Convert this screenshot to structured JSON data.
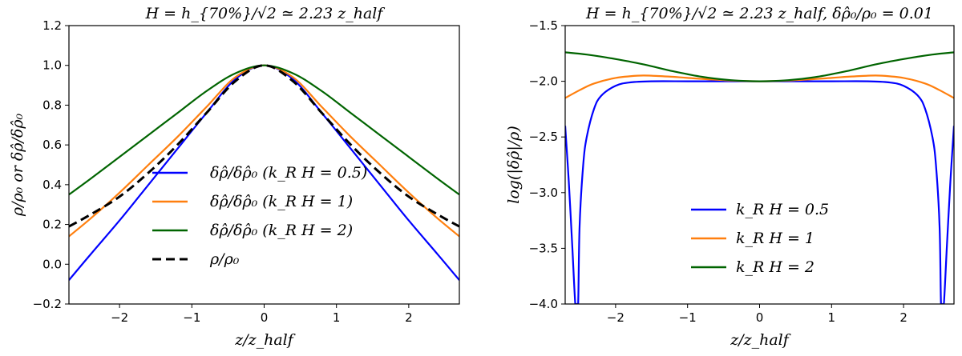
{
  "chart_data": [
    {
      "type": "line",
      "title": "H = h_{70%}/√2 ≃ 2.23 z_half",
      "xlabel": "z/z_half",
      "ylabel": "ρ/ρ₀ or δρ̂/δρ̂₀",
      "xlim": [
        -2.7,
        2.7
      ],
      "ylim": [
        -0.2,
        1.2
      ],
      "xticks": [
        -2,
        -1,
        0,
        1,
        2
      ],
      "xtick_labels": [
        "−2",
        "−1",
        "0",
        "1",
        "2"
      ],
      "yticks": [
        -0.2,
        0.0,
        0.2,
        0.4,
        0.6,
        0.8,
        1.0,
        1.2
      ],
      "ytick_labels": [
        "−0.2",
        "0.0",
        "0.2",
        "0.4",
        "0.6",
        "0.8",
        "1.0",
        "1.2"
      ],
      "grid": false,
      "legend_position": "center",
      "series": [
        {
          "name": "δρ̂/δρ̂₀ (k_R H = 0.5)",
          "color": "#0000ff",
          "dash": "solid",
          "x": [
            -2.7,
            -2.4,
            -2.0,
            -1.6,
            -1.2,
            -0.8,
            -0.4,
            0.0,
            0.4,
            0.8,
            1.2,
            1.6,
            2.0,
            2.4,
            2.7
          ],
          "y": [
            -0.08,
            0.05,
            0.22,
            0.4,
            0.58,
            0.76,
            0.93,
            1.0,
            0.93,
            0.76,
            0.58,
            0.4,
            0.22,
            0.05,
            -0.08
          ]
        },
        {
          "name": "δρ̂/δρ̂₀ (k_R H = 1)",
          "color": "#ff7f0e",
          "dash": "solid",
          "x": [
            -2.7,
            -2.4,
            -2.0,
            -1.6,
            -1.2,
            -0.8,
            -0.4,
            0.0,
            0.4,
            0.8,
            1.2,
            1.6,
            2.0,
            2.4,
            2.7
          ],
          "y": [
            0.14,
            0.23,
            0.36,
            0.5,
            0.64,
            0.79,
            0.94,
            1.0,
            0.94,
            0.79,
            0.64,
            0.5,
            0.36,
            0.23,
            0.14
          ]
        },
        {
          "name": "δρ̂/δρ̂₀ (k_R H = 2)",
          "color": "#006400",
          "dash": "solid",
          "x": [
            -2.7,
            -2.4,
            -2.0,
            -1.6,
            -1.2,
            -0.8,
            -0.4,
            0.0,
            0.4,
            0.8,
            1.2,
            1.6,
            2.0,
            2.4,
            2.7
          ],
          "y": [
            0.35,
            0.43,
            0.54,
            0.65,
            0.76,
            0.87,
            0.96,
            1.0,
            0.96,
            0.87,
            0.76,
            0.65,
            0.54,
            0.43,
            0.35
          ]
        },
        {
          "name": "ρ/ρ₀",
          "color": "#000000",
          "dash": "dashed",
          "x": [
            -2.7,
            -2.4,
            -2.0,
            -1.6,
            -1.2,
            -0.8,
            -0.4,
            0.0,
            0.4,
            0.8,
            1.2,
            1.6,
            2.0,
            2.4,
            2.7
          ],
          "y": [
            0.19,
            0.25,
            0.34,
            0.46,
            0.6,
            0.76,
            0.92,
            1.0,
            0.92,
            0.76,
            0.6,
            0.46,
            0.34,
            0.25,
            0.19
          ]
        }
      ]
    },
    {
      "type": "line",
      "title": "H = h_{70%}/√2 ≃ 2.23 z_half,   δρ̂₀/ρ₀ = 0.01",
      "xlabel": "z/z_half",
      "ylabel": "log(|δρ̂|/ρ)",
      "xlim": [
        -2.7,
        2.7
      ],
      "ylim": [
        -4.0,
        -1.5
      ],
      "xticks": [
        -2,
        -1,
        0,
        1,
        2
      ],
      "xtick_labels": [
        "−2",
        "−1",
        "0",
        "1",
        "2"
      ],
      "yticks": [
        -4.0,
        -3.5,
        -3.0,
        -2.5,
        -2.0,
        -1.5
      ],
      "ytick_labels": [
        "−4.0",
        "−3.5",
        "−3.0",
        "−2.5",
        "−2.0",
        "−1.5"
      ],
      "grid": false,
      "legend_position": "lower center",
      "series": [
        {
          "name": "k_R H = 0.5",
          "color": "#0000ff",
          "dash": "solid",
          "x": [
            -2.7,
            -2.65,
            -2.6,
            -2.56,
            -2.54,
            -2.52,
            -2.5,
            -2.45,
            -2.4,
            -2.3,
            -2.2,
            -2.0,
            -1.8,
            -1.5,
            -1.0,
            -0.5,
            0.0,
            0.5,
            1.0,
            1.5,
            1.8,
            2.0,
            2.2,
            2.3,
            2.4,
            2.45,
            2.5,
            2.52,
            2.54,
            2.56,
            2.6,
            2.65,
            2.7
          ],
          "y": [
            -2.4,
            -2.9,
            -3.5,
            -4.0,
            -4.0,
            -4.0,
            -3.3,
            -2.75,
            -2.5,
            -2.25,
            -2.13,
            -2.04,
            -2.01,
            -2.0,
            -2.0,
            -2.0,
            -2.0,
            -2.0,
            -2.0,
            -2.0,
            -2.01,
            -2.04,
            -2.13,
            -2.25,
            -2.5,
            -2.75,
            -3.3,
            -4.0,
            -4.0,
            -4.0,
            -3.5,
            -2.9,
            -2.4
          ]
        },
        {
          "name": "k_R H = 1",
          "color": "#ff7f0e",
          "dash": "solid",
          "x": [
            -2.7,
            -2.5,
            -2.3,
            -2.0,
            -1.7,
            -1.5,
            -1.2,
            -1.0,
            -0.5,
            0.0,
            0.5,
            1.0,
            1.2,
            1.5,
            1.7,
            2.0,
            2.3,
            2.5,
            2.7
          ],
          "y": [
            -2.15,
            -2.08,
            -2.02,
            -1.97,
            -1.95,
            -1.95,
            -1.96,
            -1.97,
            -1.99,
            -2.0,
            -1.99,
            -1.97,
            -1.96,
            -1.95,
            -1.95,
            -1.97,
            -2.02,
            -2.08,
            -2.15
          ]
        },
        {
          "name": "k_R H = 2",
          "color": "#006400",
          "dash": "solid",
          "x": [
            -2.7,
            -2.4,
            -2.0,
            -1.6,
            -1.2,
            -0.8,
            -0.4,
            0.0,
            0.4,
            0.8,
            1.2,
            1.6,
            2.0,
            2.4,
            2.7
          ],
          "y": [
            -1.74,
            -1.76,
            -1.8,
            -1.85,
            -1.91,
            -1.96,
            -1.99,
            -2.0,
            -1.99,
            -1.96,
            -1.91,
            -1.85,
            -1.8,
            -1.76,
            -1.74
          ]
        }
      ]
    }
  ]
}
